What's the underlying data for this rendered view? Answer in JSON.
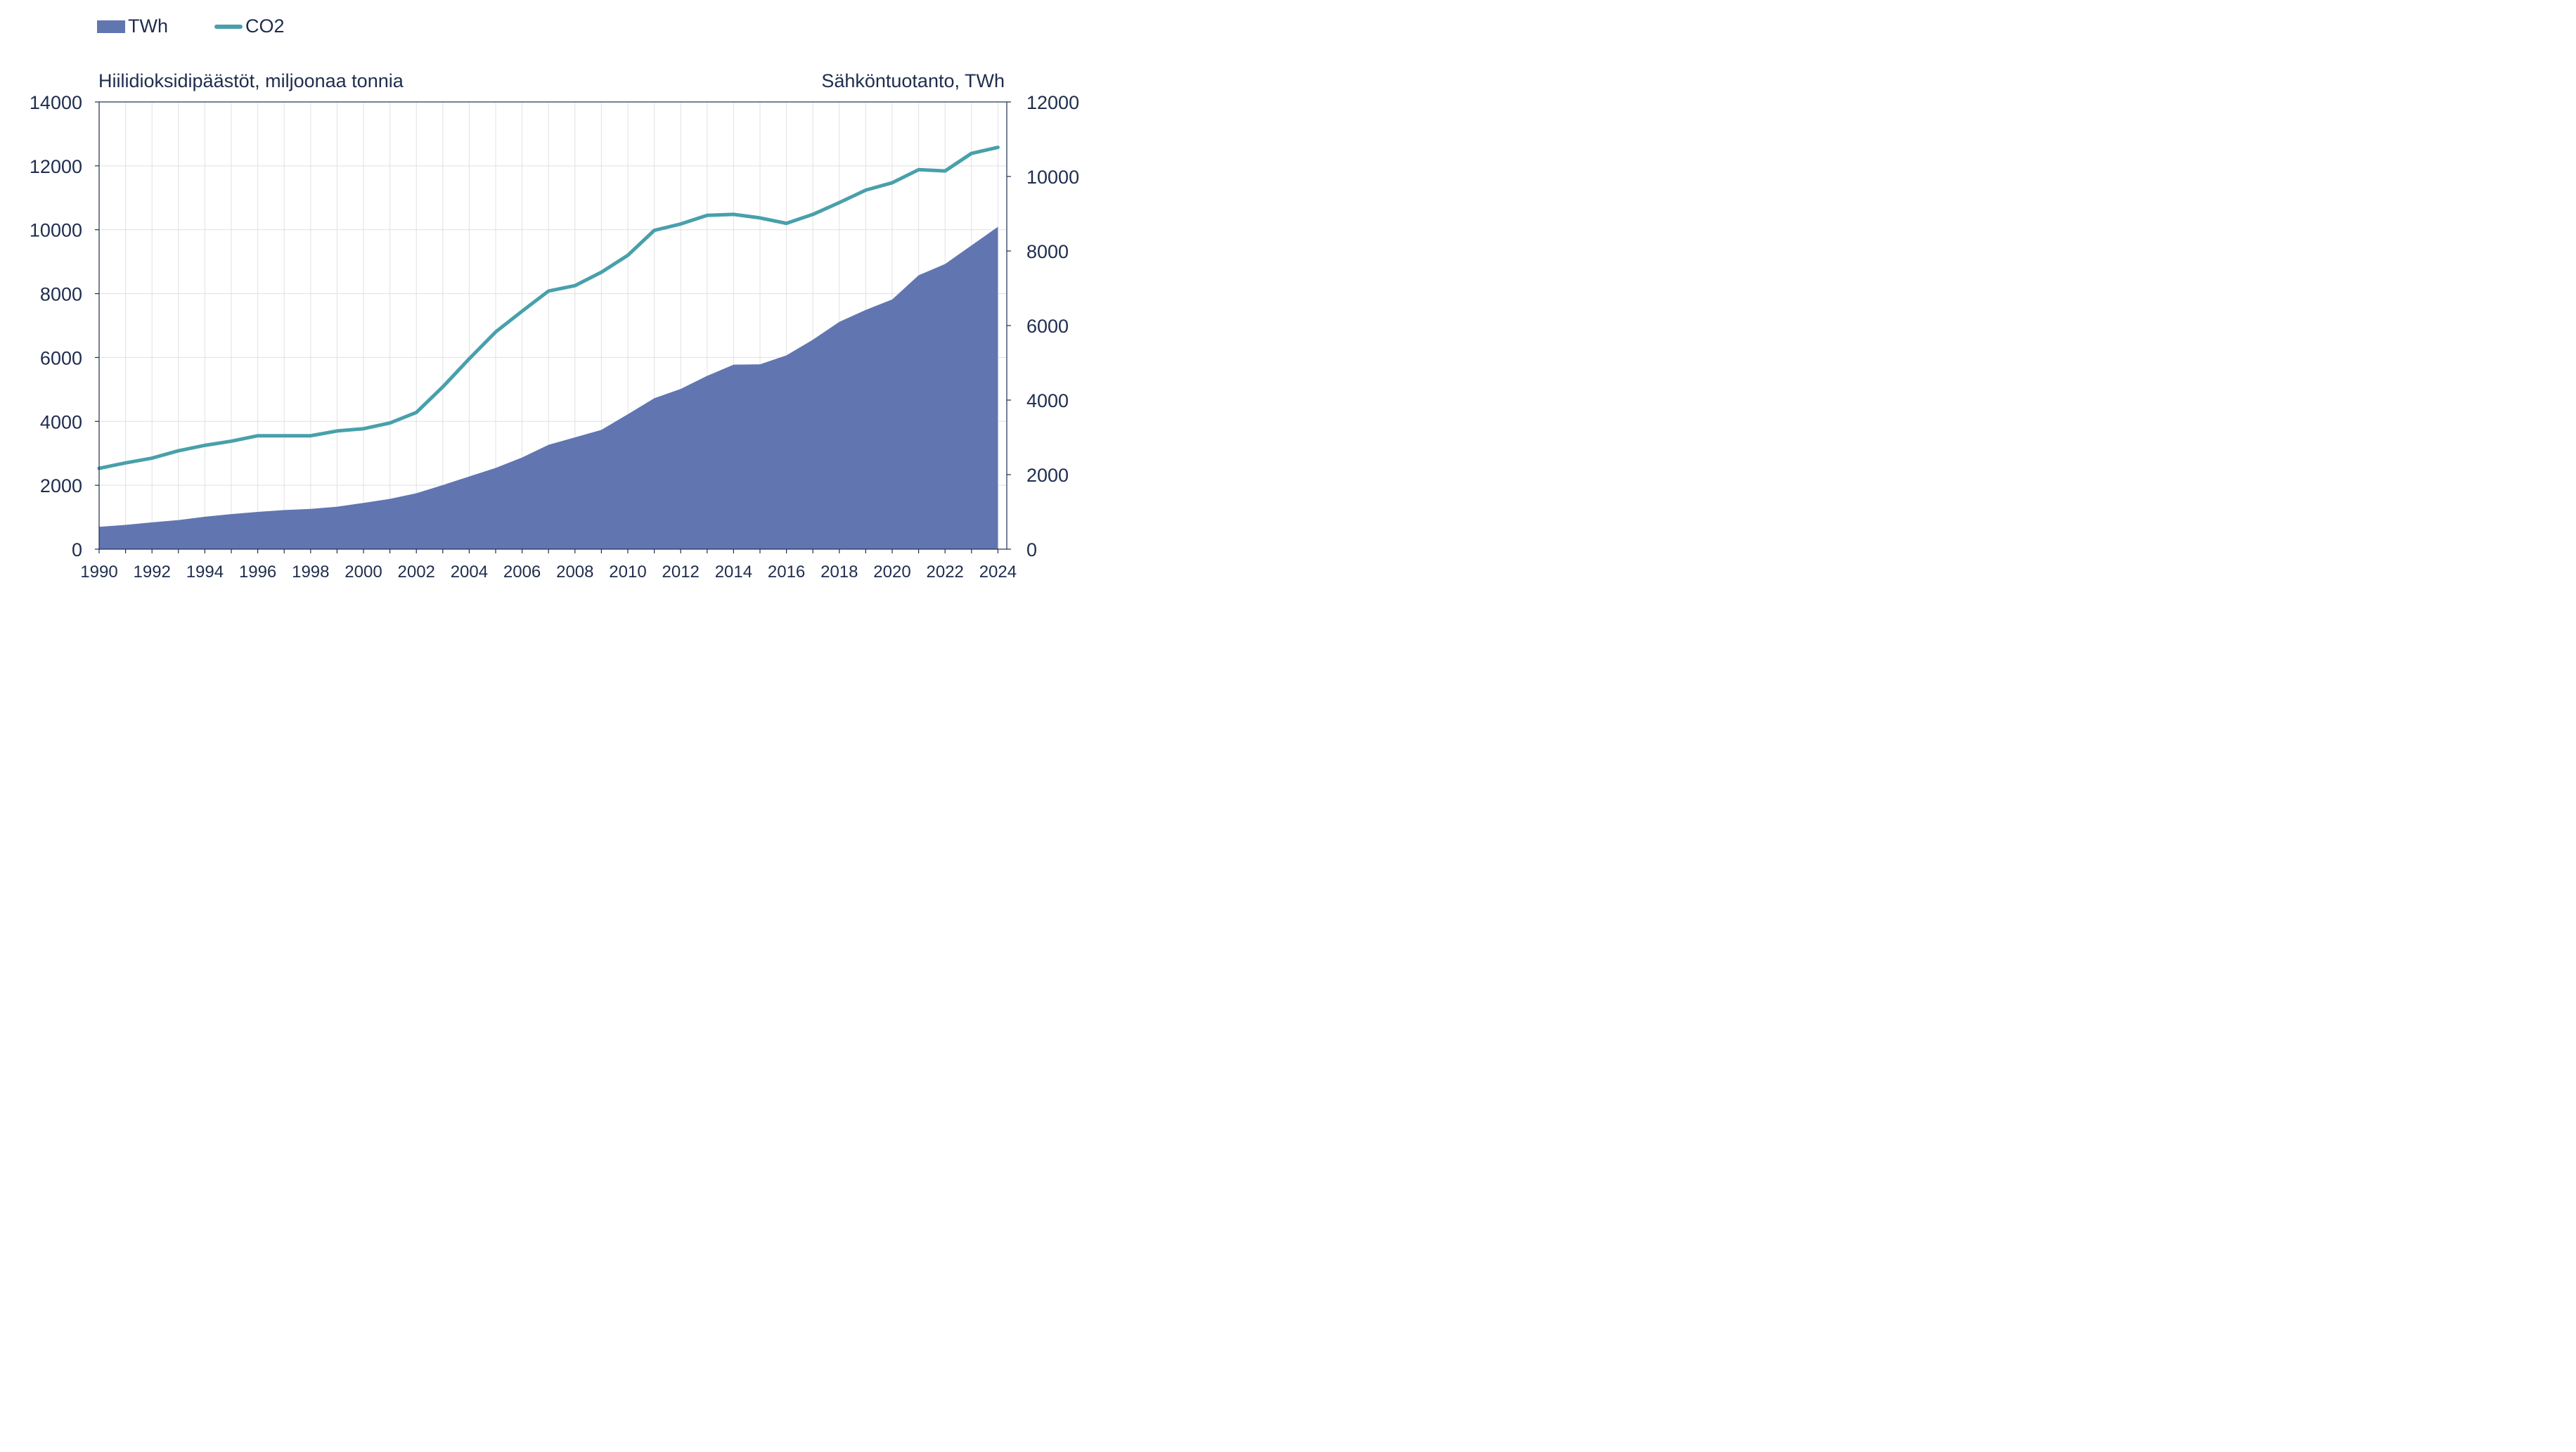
{
  "legend": {
    "area_label": "TWh",
    "line_label": "CO2"
  },
  "axes": {
    "left_title": "Hiilidioksidipäästöt, miljoonaa tonnia",
    "right_title": "Sähköntuotanto, TWh"
  },
  "colors": {
    "area": "#6175b1",
    "line": "#48a0ab",
    "grid": "#e1e1e1",
    "text": "#1f2d4d"
  },
  "chart_data": {
    "type": "area+line",
    "x": [
      1990,
      1991,
      1992,
      1993,
      1994,
      1995,
      1996,
      1997,
      1998,
      1999,
      2000,
      2001,
      2002,
      2003,
      2004,
      2005,
      2006,
      2007,
      2008,
      2009,
      2010,
      2011,
      2012,
      2013,
      2014,
      2015,
      2016,
      2017,
      2018,
      2019,
      2020,
      2021,
      2022,
      2023,
      2024
    ],
    "x_tick_labels": [
      "1990",
      "1992",
      "1994",
      "1996",
      "1998",
      "2000",
      "2002",
      "2004",
      "2006",
      "2008",
      "2010",
      "2012",
      "2014",
      "2016",
      "2018",
      "2020",
      "2022",
      "2024"
    ],
    "series": [
      {
        "name": "TWh",
        "type": "area",
        "axis": "right",
        "values": [
          600,
          650,
          720,
          780,
          870,
          940,
          1000,
          1050,
          1080,
          1140,
          1240,
          1350,
          1500,
          1720,
          1950,
          2180,
          2460,
          2800,
          3000,
          3200,
          3620,
          4050,
          4300,
          4650,
          4950,
          4960,
          5200,
          5620,
          6100,
          6420,
          6700,
          7350,
          7650,
          8150,
          8650
        ]
      },
      {
        "name": "CO2",
        "type": "line",
        "axis": "left",
        "values": [
          2530,
          2700,
          2850,
          3080,
          3250,
          3380,
          3550,
          3550,
          3550,
          3700,
          3770,
          3950,
          4280,
          5080,
          5960,
          6800,
          7450,
          8080,
          8250,
          8670,
          9200,
          9980,
          10180,
          10450,
          10480,
          10370,
          10200,
          10480,
          10850,
          11240,
          11470,
          11880,
          11840,
          12390,
          12580
        ]
      }
    ],
    "y_left": {
      "min": 0,
      "max": 14000,
      "ticks": [
        0,
        2000,
        4000,
        6000,
        8000,
        10000,
        12000,
        14000
      ]
    },
    "y_right": {
      "min": 0,
      "max": 12000,
      "ticks": [
        0,
        2000,
        4000,
        6000,
        8000,
        10000,
        12000
      ]
    },
    "grid": true,
    "legend_position": "top-left"
  }
}
